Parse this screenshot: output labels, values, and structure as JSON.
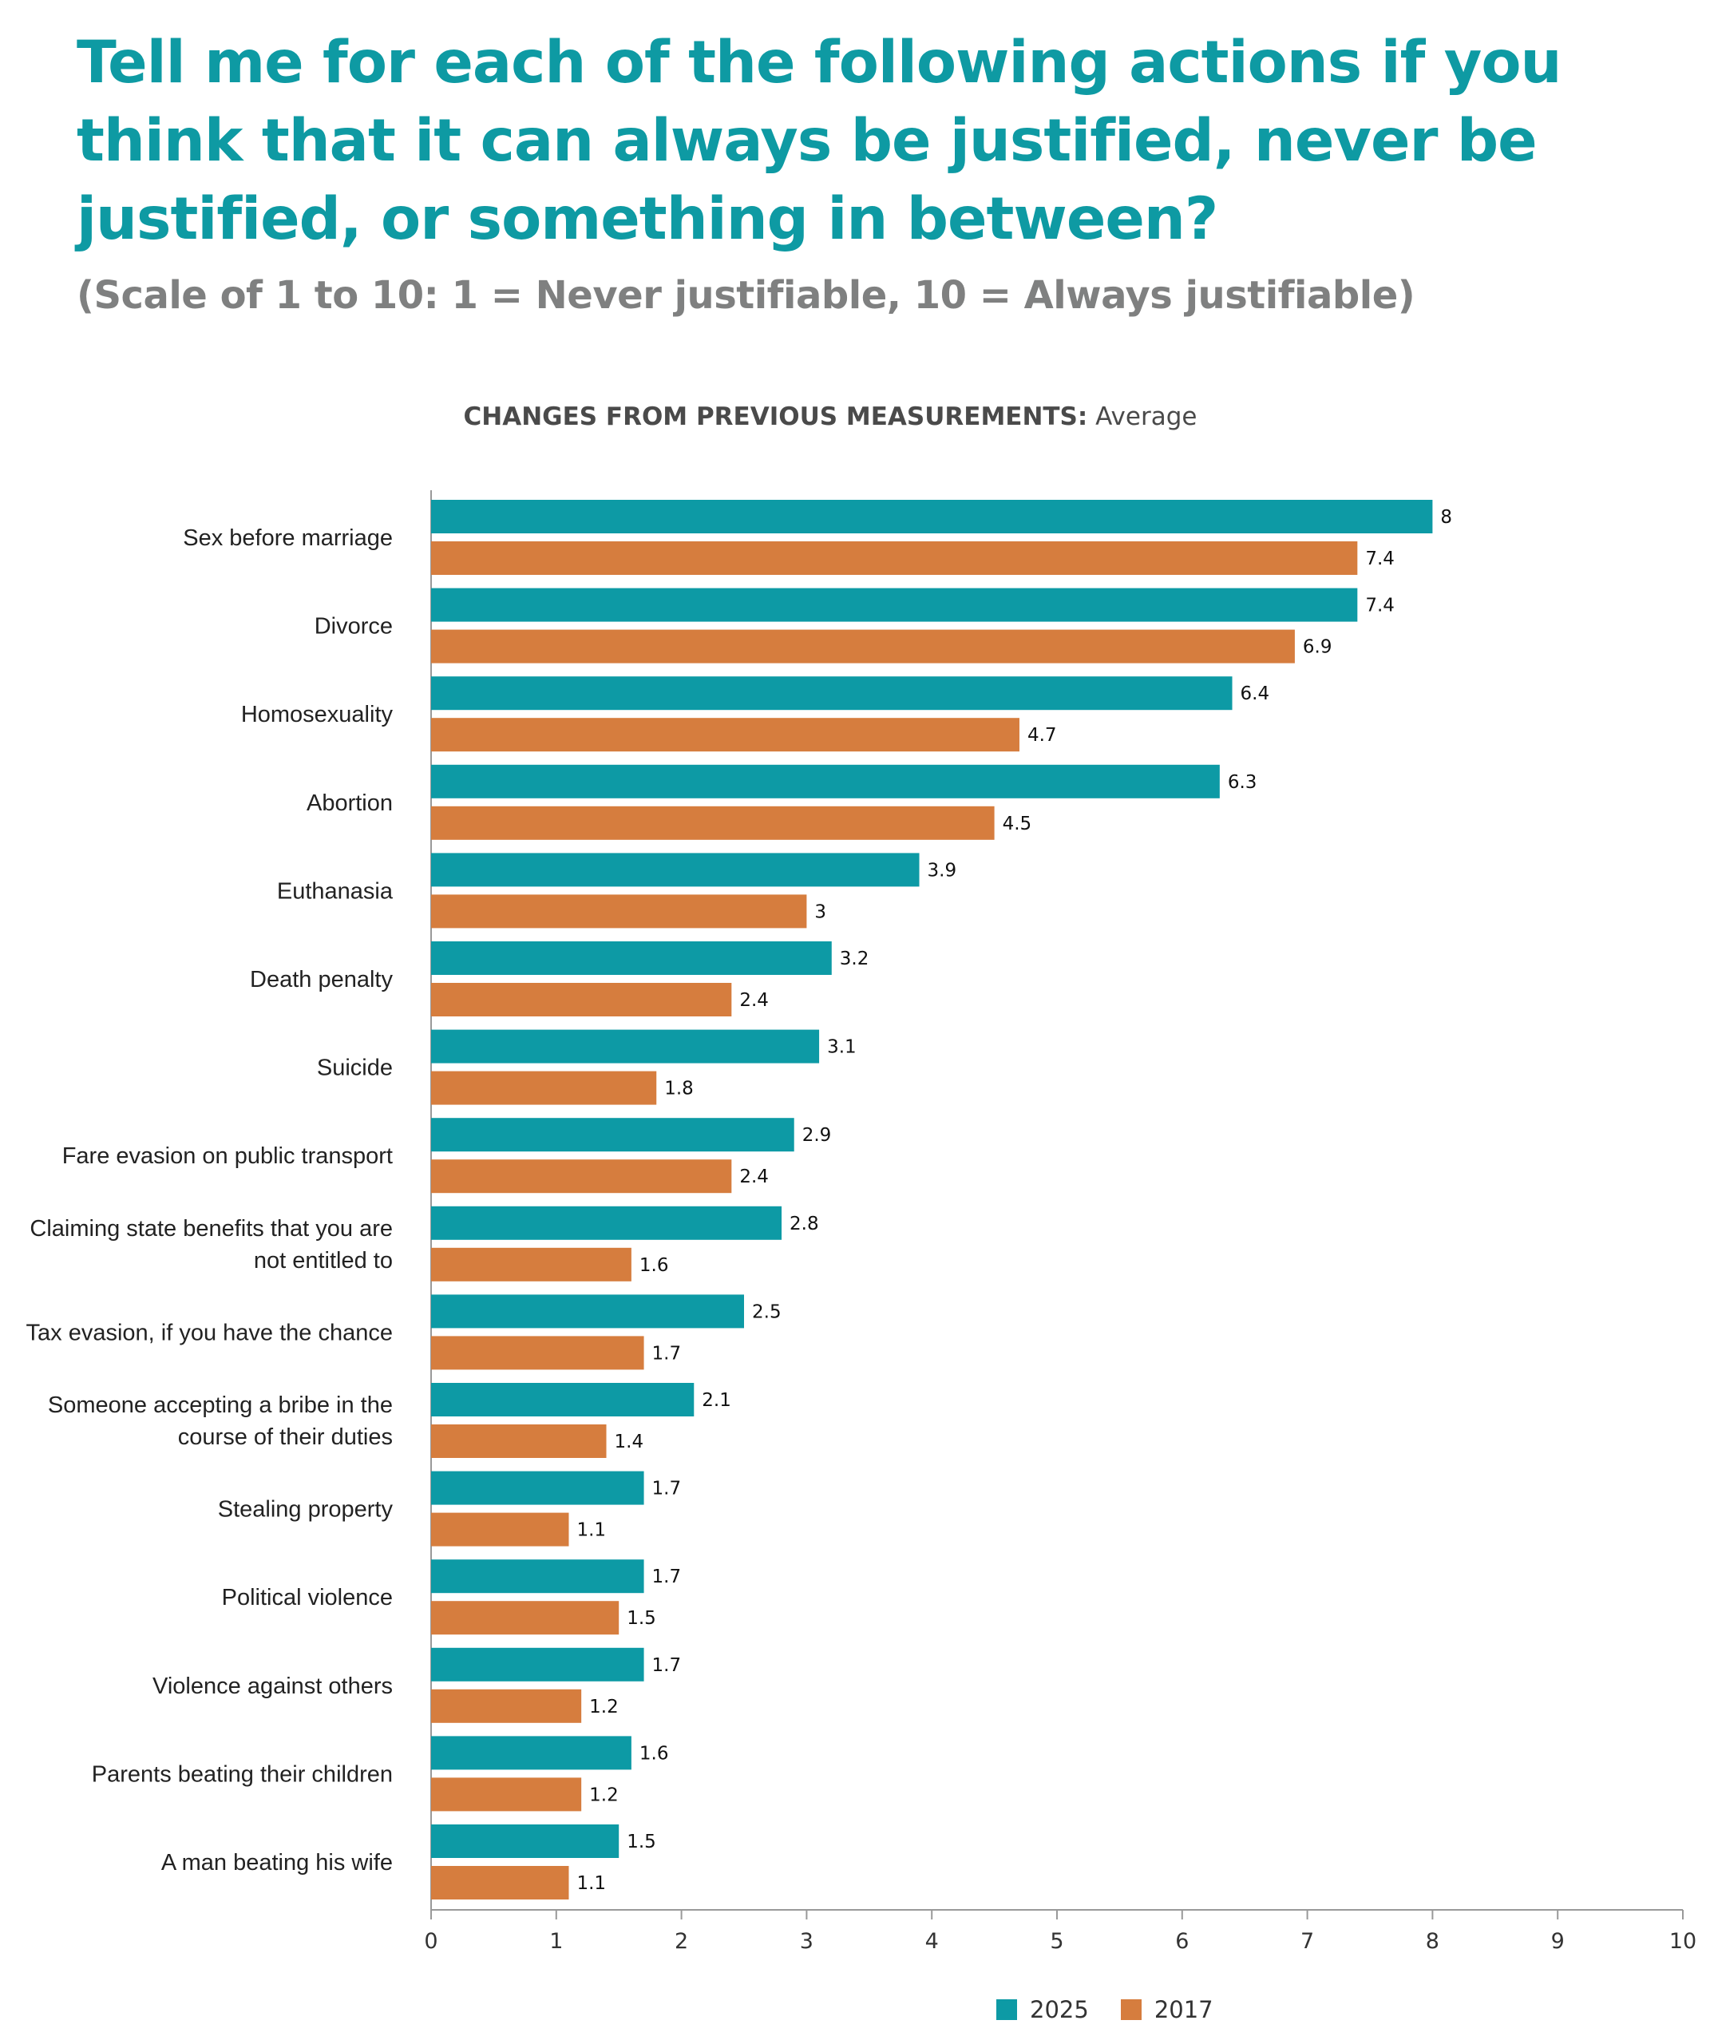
{
  "title": "Tell me for each of the following actions if you think that it can always be justified, never be justified, or something in between?",
  "subtitle": "(Scale of 1 to 10: 1 = Never justifiable, 10 = Always justifiable)",
  "chart_heading": {
    "bold": "CHANGES FROM PREVIOUS MEASUREMENTS:",
    "normal": "Average"
  },
  "chart_data": {
    "type": "bar",
    "orientation": "horizontal",
    "categories": [
      [
        "Sex before marriage"
      ],
      [
        "Divorce"
      ],
      [
        "Homosexuality"
      ],
      [
        "Abortion"
      ],
      [
        "Euthanasia"
      ],
      [
        "Death penalty"
      ],
      [
        "Suicide"
      ],
      [
        "Fare evasion on public transport"
      ],
      [
        "Claiming state benefits that you are",
        "not entitled to"
      ],
      [
        "Tax evasion, if you have the chance"
      ],
      [
        "Someone accepting a bribe in the",
        "course of their duties"
      ],
      [
        "Stealing property"
      ],
      [
        "Political violence"
      ],
      [
        "Violence against others"
      ],
      [
        "Parents beating their children"
      ],
      [
        "A man beating his wife"
      ]
    ],
    "series": [
      {
        "name": "2025",
        "color": "#0d9aa5",
        "values": [
          8,
          7.4,
          6.4,
          6.3,
          3.9,
          3.2,
          3.1,
          2.9,
          2.8,
          2.5,
          2.1,
          1.7,
          1.7,
          1.7,
          1.6,
          1.5
        ]
      },
      {
        "name": "2017",
        "color": "#d67d3e",
        "values": [
          7.4,
          6.9,
          4.7,
          4.5,
          3,
          2.4,
          1.8,
          2.4,
          1.6,
          1.7,
          1.4,
          1.1,
          1.5,
          1.2,
          1.2,
          1.1
        ]
      }
    ],
    "xlim": [
      0,
      10
    ],
    "xticks": [
      0,
      1,
      2,
      3,
      4,
      5,
      6,
      7,
      8,
      9,
      10
    ],
    "grid": false,
    "legend_position": "bottom-center"
  }
}
